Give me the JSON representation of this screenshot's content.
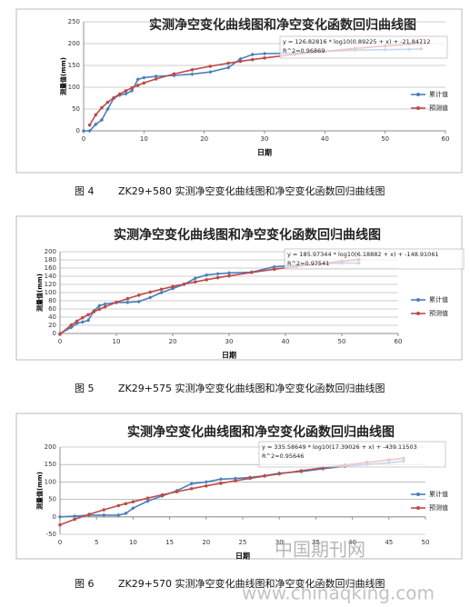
{
  "chart_data": [
    {
      "type": "line",
      "title": "实测净空变化曲线图和净空变化函数回归曲线图",
      "annotations": [
        "y = 126.82816 * log10(0.89225 + x) + -21.84712",
        "R^2=0.96869"
      ],
      "xlabel": "日期",
      "ylabel": "测量值(mm)",
      "figure": "图 4",
      "caption": "ZK29+580 实测净空变化曲线图和净空变化函数回归曲线图",
      "x": [
        0,
        1,
        2,
        3,
        4,
        5,
        6,
        7,
        8,
        9,
        10,
        12,
        15,
        18,
        21,
        24,
        26,
        28,
        30,
        35,
        40,
        45,
        50,
        54,
        56
      ],
      "series": [
        {
          "name": "累计值",
          "color": "#4a7ebb",
          "values": [
            0,
            0,
            15,
            25,
            50,
            75,
            82,
            85,
            92,
            118,
            122,
            125,
            127,
            130,
            135,
            145,
            165,
            175,
            177,
            178,
            182,
            185,
            186,
            187,
            188
          ]
        },
        {
          "name": "预测值",
          "color": "#be4b48",
          "values": [
            null,
            13.3,
            36.6,
            53.0,
            65.6,
            75.8,
            84.5,
            91.9,
            98.5,
            104.4,
            109.7,
            119.0,
            130.5,
            140.0,
            148.1,
            155.2,
            159.5,
            163.4,
            167.1,
            175.4,
            182.6,
            188.9,
            194.6,
            198.7,
            200.7
          ]
        }
      ],
      "xlim": [
        0,
        60
      ],
      "xticks": [
        0,
        10,
        20,
        30,
        40,
        50,
        60
      ],
      "ylim": [
        0,
        250
      ],
      "yticks": [
        0,
        50,
        100,
        150,
        200,
        250
      ],
      "grid": true,
      "legend": "right"
    },
    {
      "type": "line",
      "title": "实测净空变化曲线图和净空变化函数回归曲线图",
      "annotations": [
        "y = 185.97344 * log10(6.18882 + x) + -148.91061",
        "R^2=0.97541"
      ],
      "xlabel": "日期",
      "ylabel": "测量值(mm)",
      "figure": "图 5",
      "caption": "ZK29+575 实测净空变化曲线图和净空变化函数回归曲线图",
      "x": [
        0,
        2,
        3,
        4,
        5,
        6,
        7,
        8,
        10,
        12,
        14,
        16,
        18,
        20,
        22,
        24,
        26,
        28,
        30,
        34,
        38,
        42,
        46,
        50,
        53
      ],
      "series": [
        {
          "name": "累计值",
          "color": "#4a7ebb",
          "values": [
            0,
            15,
            25,
            28,
            32,
            55,
            68,
            72,
            76,
            76,
            78,
            88,
            100,
            110,
            120,
            135,
            143,
            146,
            148,
            150,
            163,
            167,
            170,
            172,
            172
          ]
        },
        {
          "name": "预测值",
          "color": "#be4b48",
          "values": [
            -1.7,
            20.9,
            30.2,
            38.6,
            46.1,
            53.1,
            59.4,
            65.3,
            76.0,
            85.4,
            93.8,
            101.3,
            108.3,
            114.8,
            120.8,
            126.3,
            131.5,
            136.4,
            140.9,
            149.4,
            157.1,
            164.1,
            170.5,
            176.5,
            180.7
          ]
        }
      ],
      "xlim": [
        0,
        60
      ],
      "xticks": [
        0,
        10,
        20,
        30,
        40,
        50,
        60
      ],
      "ylim": [
        0,
        200
      ],
      "yticks": [
        0,
        20,
        40,
        60,
        80,
        100,
        120,
        140,
        160,
        180,
        200
      ],
      "grid": true,
      "legend": "right"
    },
    {
      "type": "line",
      "title": "实测净空变化曲线图和净空变化函数回归曲线图",
      "annotations": [
        "y = 335.58649 * log10(17.39026 + x) + -439.11503",
        "R^2=0.95646"
      ],
      "xlabel": "日期",
      "ylabel": "测量值(mm)",
      "figure": "图 6",
      "caption": "ZK29+570 实测净空变化曲线图和净空变化函数回归曲线图",
      "x": [
        0,
        2,
        4,
        6,
        8,
        9,
        10,
        12,
        14,
        16,
        18,
        20,
        22,
        24,
        26,
        28,
        30,
        33,
        36,
        39,
        42,
        45,
        47
      ],
      "series": [
        {
          "name": "累计值",
          "color": "#4a7ebb",
          "values": [
            0,
            2,
            5,
            5,
            5,
            10,
            25,
            45,
            60,
            75,
            95,
            100,
            108,
            110,
            113,
            118,
            125,
            130,
            138,
            145,
            150,
            155,
            160
          ]
        },
        {
          "name": "预测值",
          "color": "#be4b48",
          "values": [
            -22.9,
            -7.0,
            7.3,
            20.3,
            32.3,
            37.9,
            43.3,
            53.6,
            63.2,
            72.2,
            80.7,
            88.7,
            96.3,
            103.5,
            110.4,
            117.0,
            123.2,
            132.2,
            140.6,
            148.5,
            156.1,
            163.3,
            167.9
          ]
        }
      ],
      "xlim": [
        0,
        50
      ],
      "xticks": [
        0,
        5,
        10,
        15,
        20,
        25,
        30,
        35,
        40,
        45,
        50
      ],
      "ylim": [
        -50,
        200
      ],
      "yticks": [
        -50,
        0,
        50,
        100,
        150,
        200
      ],
      "grid": true,
      "legend": "right"
    }
  ],
  "watermark": {
    "cn": "中国期刊网",
    "url": "www.chinaqking.com"
  }
}
